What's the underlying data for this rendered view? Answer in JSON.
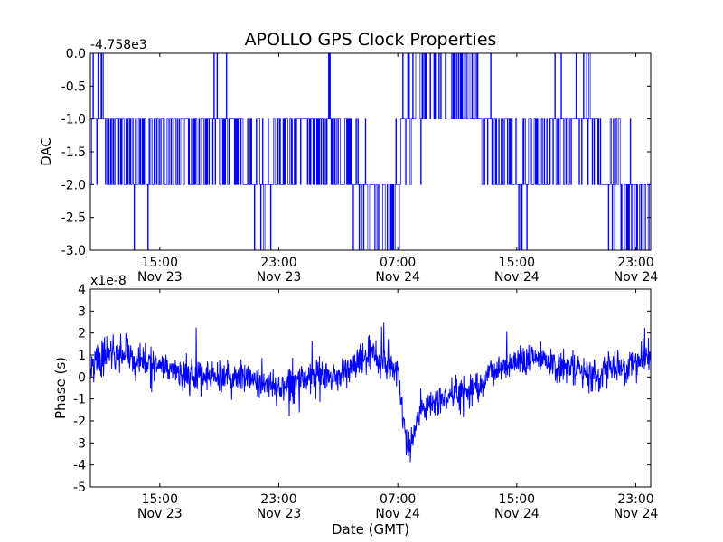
{
  "figure": {
    "title": "APOLLO GPS Clock Properties"
  },
  "chart_data": [
    {
      "type": "line",
      "title": "APOLLO GPS Clock Properties",
      "xlabel": "",
      "ylabel": "DAC",
      "y_offset_text": "-4.758e3",
      "y_offset": -4758,
      "ylim": [
        -3.0,
        0.0
      ],
      "y_ticks": [
        -3.0,
        -2.5,
        -2.0,
        -1.5,
        -1.0,
        -0.5,
        0.0
      ],
      "y_tick_labels": [
        "-3.0",
        "-2.5",
        "-2.0",
        "-1.5",
        "-1.0",
        "-0.5",
        "0.0"
      ],
      "xlim": [
        "Nov 23 10:20",
        "Nov 25 00:00"
      ],
      "x_ticks": [
        {
          "time": "15:00",
          "date": "Nov 23"
        },
        {
          "time": "23:00",
          "date": "Nov 23"
        },
        {
          "time": "07:00",
          "date": "Nov 24"
        },
        {
          "time": "15:00",
          "date": "Nov 24"
        },
        {
          "time": "23:00",
          "date": "Nov 24"
        }
      ],
      "line_color": "#0000ff",
      "series": [
        {
          "x": [
            "Nov 23 10:20",
            "Nov 23 14:00",
            "Nov 23 18:00",
            "Nov 23 22:00",
            "Nov 24 02:00",
            "Nov 24 04:00",
            "Nov 24 06:30",
            "Nov 24 07:30",
            "Nov 24 10:00",
            "Nov 24 13:00",
            "Nov 24 15:00",
            "Nov 24 19:00",
            "Nov 24 22:00",
            "Nov 24 23:59"
          ],
          "values": [
            -1.0,
            -2.0,
            -1.0,
            -2.0,
            -1.0,
            -2.0,
            -3.0,
            -1.0,
            0.0,
            -1.0,
            -2.0,
            -1.0,
            -2.0,
            -3.0
          ]
        }
      ]
    },
    {
      "type": "line",
      "xlabel": "Date (GMT)",
      "ylabel": "Phase (s)",
      "y_offset_text": "x1e-8",
      "y_multiplier": 1e-08,
      "ylim": [
        -5,
        4
      ],
      "y_ticks": [
        -5,
        -4,
        -3,
        -2,
        -1,
        0,
        1,
        2,
        3,
        4
      ],
      "y_tick_labels": [
        "-5",
        "-4",
        "-3",
        "-2",
        "-1",
        "0",
        "1",
        "2",
        "3",
        "4"
      ],
      "xlim": [
        "Nov 23 10:20",
        "Nov 25 00:00"
      ],
      "x_ticks": [
        {
          "time": "15:00",
          "date": "Nov 23"
        },
        {
          "time": "23:00",
          "date": "Nov 23"
        },
        {
          "time": "07:00",
          "date": "Nov 24"
        },
        {
          "time": "15:00",
          "date": "Nov 24"
        },
        {
          "time": "23:00",
          "date": "Nov 24"
        }
      ],
      "line_color": "#0000ff",
      "series": [
        {
          "x": [
            "Nov 23 10:20",
            "Nov 23 11:30",
            "Nov 23 13:00",
            "Nov 23 15:00",
            "Nov 23 17:00",
            "Nov 23 19:00",
            "Nov 23 21:00",
            "Nov 23 23:00",
            "Nov 24 01:00",
            "Nov 24 03:00",
            "Nov 24 04:00",
            "Nov 24 05:00",
            "Nov 24 06:30",
            "Nov 24 07:00",
            "Nov 24 07:40",
            "Nov 24 08:30",
            "Nov 24 10:00",
            "Nov 24 12:00",
            "Nov 24 14:00",
            "Nov 24 16:00",
            "Nov 24 18:00",
            "Nov 24 20:00",
            "Nov 24 22:00",
            "Nov 24 23:59"
          ],
          "values": [
            0.5,
            1.0,
            1.0,
            0.5,
            0.0,
            0.0,
            0.0,
            -0.5,
            0.0,
            0.0,
            0.5,
            1.0,
            0.5,
            0.3,
            -3.5,
            -1.5,
            -1.0,
            -0.5,
            0.5,
            1.0,
            0.5,
            0.0,
            0.5,
            0.8
          ]
        }
      ]
    }
  ]
}
